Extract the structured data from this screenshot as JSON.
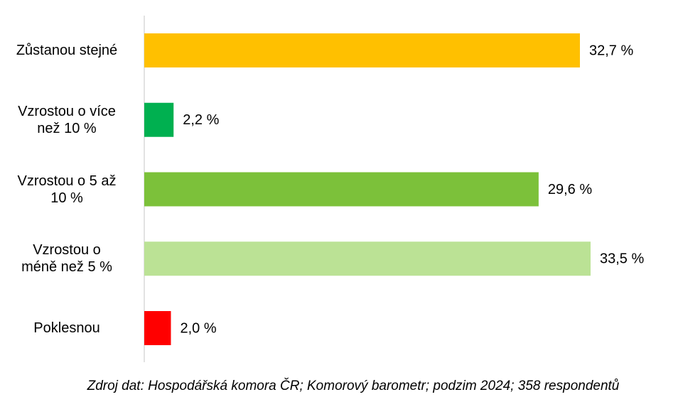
{
  "chart_data": {
    "type": "bar",
    "orientation": "horizontal",
    "categories": [
      "Zůstanou stejné",
      "Vzrostou o více\nnež 10 %",
      "Vzrostou o 5 až\n10 %",
      "Vzrostou o\nméně než 5 %",
      "Poklesnou"
    ],
    "values": [
      32.7,
      2.2,
      29.6,
      33.5,
      2.0
    ],
    "value_labels": [
      "32,7 %",
      "2,2 %",
      "29,6 %",
      "33,5 %",
      "2,0 %"
    ],
    "colors": [
      "#ffc000",
      "#00b050",
      "#7cc13a",
      "#bbe295",
      "#ff0000"
    ],
    "source": "Zdroj dat: Hospodářská komora ČR; Komorový barometr; podzim 2024; 358 respondentů"
  }
}
